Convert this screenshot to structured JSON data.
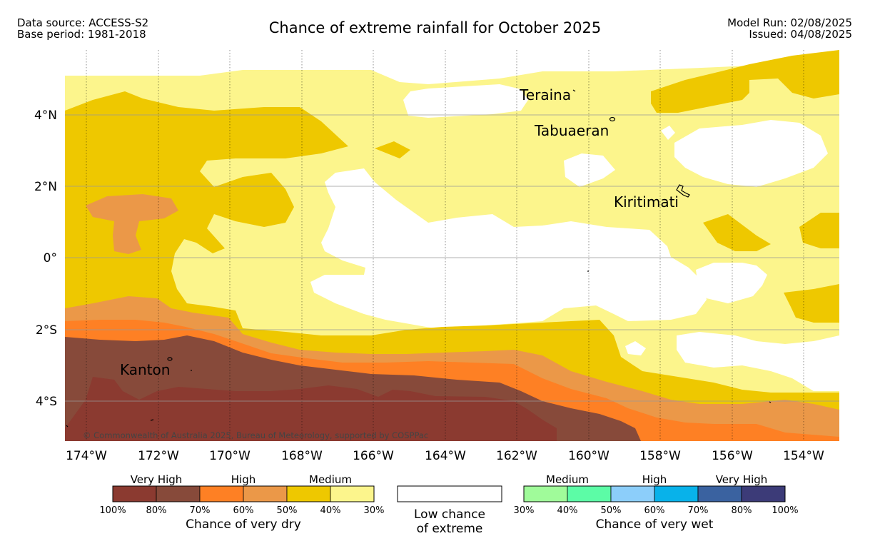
{
  "header": {
    "data_source": "Data source: ACCESS-S2",
    "base_period": "Base period: 1981-2018",
    "title": "Chance of extreme rainfall for October 2025",
    "model_run": "Model Run: 02/08/2025",
    "issued": "Issued: 04/08/2025"
  },
  "map": {
    "islands": [
      "Teraina",
      "Tabuaeran",
      "Kiritimati",
      "Kanton"
    ],
    "copyright": "© Commonwealth of Australia 2025, Bureau of Meteorology, supported by COSPPac",
    "lat_labels": [
      "4°N",
      "2°N",
      "0°",
      "2°S",
      "4°S"
    ],
    "lon_labels": [
      "174°W",
      "172°W",
      "170°W",
      "168°W",
      "166°W",
      "164°W",
      "162°W",
      "160°W",
      "158°W",
      "156°W",
      "154°W"
    ],
    "extent": {
      "lon_west": -174.6,
      "lon_east": -153.0,
      "lat_south": -5.1,
      "lat_north": 5.8
    }
  },
  "legend": {
    "dry": {
      "groups": [
        "Very High",
        "High",
        "Medium"
      ],
      "colors": [
        "#8b3a30",
        "#874a3a",
        "#fe8024",
        "#eb9848",
        "#eec800",
        "#fcf58c"
      ],
      "ticks": [
        "100%",
        "80%",
        "70%",
        "60%",
        "50%",
        "40%",
        "30%"
      ],
      "label": "Chance of very dry"
    },
    "low": {
      "color": "#ffffff",
      "label_line1": "Low chance",
      "label_line2": "of extreme"
    },
    "wet": {
      "groups": [
        "Medium",
        "High",
        "Very High"
      ],
      "colors": [
        "#a0fb9a",
        "#5cfca6",
        "#8ccefa",
        "#08b2ea",
        "#3a62a0",
        "#3c3b78"
      ],
      "ticks": [
        "30%",
        "40%",
        "50%",
        "60%",
        "70%",
        "80%",
        "100%"
      ],
      "label": "Chance of very wet"
    }
  }
}
